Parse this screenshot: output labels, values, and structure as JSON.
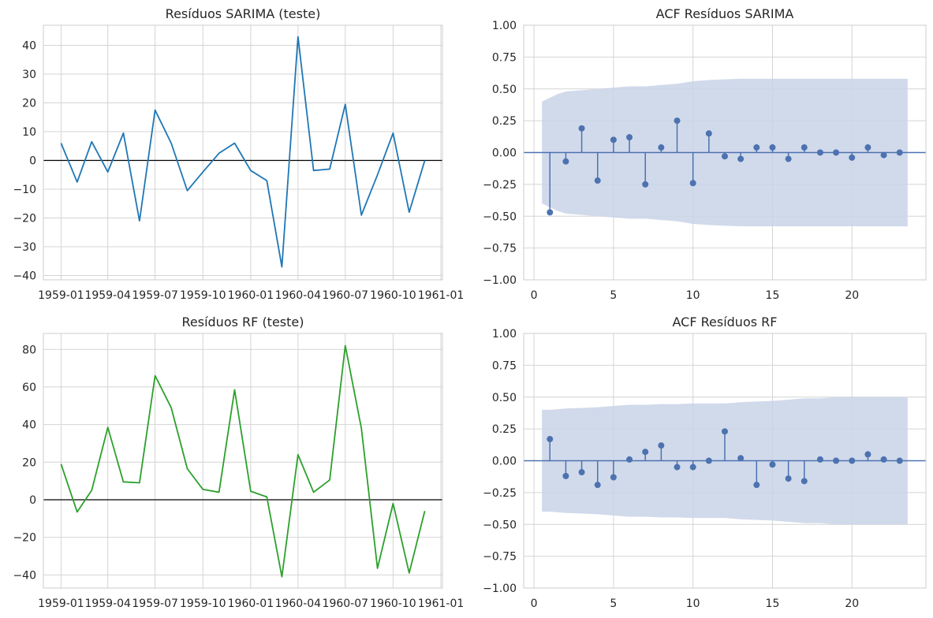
{
  "colors": {
    "sarima_line": "#1f77b4",
    "rf_line": "#2ca02c",
    "acf_marker": "#4c72b0",
    "conf_band": "#c9d3e8",
    "zero_line": "#000000"
  },
  "chart_data": [
    {
      "type": "line",
      "title": "Resíduos SARIMA (teste)",
      "xlabel": "",
      "ylabel": "",
      "x": [
        "1959-01",
        "1959-02",
        "1959-03",
        "1959-04",
        "1959-05",
        "1959-06",
        "1959-07",
        "1959-08",
        "1959-09",
        "1959-10",
        "1959-11",
        "1959-12",
        "1960-01",
        "1960-02",
        "1960-03",
        "1960-04",
        "1960-05",
        "1960-06",
        "1960-07",
        "1960-08",
        "1960-09",
        "1960-10",
        "1960-11",
        "1960-12"
      ],
      "series": [
        {
          "values": [
            6,
            -7.5,
            6.5,
            -4,
            9.5,
            -21,
            17.5,
            6,
            -10.5,
            -4,
            2.5,
            6,
            -3.5,
            -7,
            -37,
            43,
            -3.5,
            -3,
            19.5,
            -19,
            -5,
            9.5,
            -18,
            0
          ]
        }
      ],
      "xticks": [
        "1959-01",
        "1959-04",
        "1959-07",
        "1959-10",
        "1960-01",
        "1960-04",
        "1960-07",
        "1960-10",
        "1961-01"
      ],
      "yticks": [
        -40,
        -30,
        -20,
        -10,
        0,
        10,
        20,
        30,
        40
      ],
      "ylim": [
        -41.5,
        47
      ],
      "xlim": [
        "1958-11-28",
        "1961-01-04"
      ],
      "hline": 0,
      "grid": true
    },
    {
      "type": "stem",
      "title": "ACF Resíduos SARIMA",
      "xlabel": "",
      "ylabel": "",
      "lags": [
        1,
        2,
        3,
        4,
        5,
        6,
        7,
        8,
        9,
        10,
        11,
        12,
        13,
        14,
        15,
        16,
        17,
        18,
        19,
        20,
        21,
        22,
        23
      ],
      "values": [
        -0.47,
        -0.07,
        0.19,
        -0.22,
        0.1,
        0.12,
        -0.25,
        0.04,
        0.25,
        -0.24,
        0.15,
        -0.03,
        -0.05,
        0.04,
        0.04,
        -0.05,
        0.04,
        0.0,
        0.0,
        -0.04,
        0.04,
        -0.02,
        0.0
      ],
      "conf_band_x": [
        0.5,
        1,
        1.5,
        2,
        3,
        4,
        5,
        6,
        7,
        8,
        9,
        10,
        11,
        12,
        13,
        14,
        15,
        16,
        17,
        18,
        19,
        20,
        21,
        22,
        23,
        23.5
      ],
      "conf_band_upper": [
        0.4,
        0.43,
        0.46,
        0.48,
        0.49,
        0.5,
        0.51,
        0.52,
        0.52,
        0.53,
        0.54,
        0.56,
        0.57,
        0.575,
        0.58,
        0.58,
        0.58,
        0.58,
        0.58,
        0.58,
        0.58,
        0.58,
        0.58,
        0.58,
        0.58,
        0.58
      ],
      "xticks": [
        0,
        5,
        10,
        15,
        20
      ],
      "yticks": [
        -1.0,
        -0.75,
        -0.5,
        -0.25,
        0.0,
        0.25,
        0.5,
        0.75,
        1.0
      ],
      "xlim": [
        -0.65,
        24.65
      ],
      "ylim": [
        -1.0,
        1.0
      ],
      "grid": true
    },
    {
      "type": "line",
      "title": "Resíduos RF (teste)",
      "xlabel": "",
      "ylabel": "",
      "x": [
        "1959-01",
        "1959-02",
        "1959-03",
        "1959-04",
        "1959-05",
        "1959-06",
        "1959-07",
        "1959-08",
        "1959-09",
        "1959-10",
        "1959-11",
        "1959-12",
        "1960-01",
        "1960-02",
        "1960-03",
        "1960-04",
        "1960-05",
        "1960-06",
        "1960-07",
        "1960-08",
        "1960-09",
        "1960-10",
        "1960-11",
        "1960-12"
      ],
      "series": [
        {
          "values": [
            19,
            -6.5,
            5,
            38.5,
            9.5,
            9,
            66,
            49,
            16.5,
            5.5,
            4,
            58.5,
            4.5,
            1.5,
            -41,
            24,
            4,
            10.5,
            82,
            38,
            -36.5,
            -2,
            -39,
            -6
          ]
        }
      ],
      "xticks": [
        "1959-01",
        "1959-04",
        "1959-07",
        "1959-10",
        "1960-01",
        "1960-04",
        "1960-07",
        "1960-10",
        "1961-01"
      ],
      "yticks": [
        -40,
        -20,
        0,
        20,
        40,
        60,
        80
      ],
      "ylim": [
        -47,
        88.5
      ],
      "xlim": [
        "1958-11-28",
        "1961-01-04"
      ],
      "hline": 0,
      "grid": true
    },
    {
      "type": "stem",
      "title": "ACF Resíduos RF",
      "xlabel": "",
      "ylabel": "",
      "lags": [
        1,
        2,
        3,
        4,
        5,
        6,
        7,
        8,
        9,
        10,
        11,
        12,
        13,
        14,
        15,
        16,
        17,
        18,
        19,
        20,
        21,
        22,
        23
      ],
      "values": [
        0.17,
        -0.12,
        -0.09,
        -0.19,
        -0.13,
        0.01,
        0.07,
        0.12,
        -0.05,
        -0.05,
        0.0,
        0.23,
        0.02,
        -0.19,
        -0.03,
        -0.14,
        -0.16,
        0.01,
        0.0,
        0.0,
        0.05,
        0.01,
        0.0
      ],
      "conf_band_x": [
        0.5,
        1,
        2,
        3,
        4,
        5,
        6,
        7,
        8,
        9,
        10,
        11,
        12,
        13,
        14,
        15,
        16,
        17,
        18,
        19,
        20,
        21,
        22,
        23,
        23.5
      ],
      "conf_band_upper": [
        0.4,
        0.4,
        0.41,
        0.415,
        0.42,
        0.43,
        0.44,
        0.44,
        0.445,
        0.445,
        0.45,
        0.45,
        0.45,
        0.46,
        0.465,
        0.47,
        0.48,
        0.49,
        0.49,
        0.5,
        0.5,
        0.5,
        0.5,
        0.5,
        0.5
      ],
      "xticks": [
        0,
        5,
        10,
        15,
        20
      ],
      "yticks": [
        -1.0,
        -0.75,
        -0.5,
        -0.25,
        0.0,
        0.25,
        0.5,
        0.75,
        1.0
      ],
      "xlim": [
        -0.65,
        24.65
      ],
      "ylim": [
        -1.0,
        1.0
      ],
      "grid": true
    }
  ]
}
